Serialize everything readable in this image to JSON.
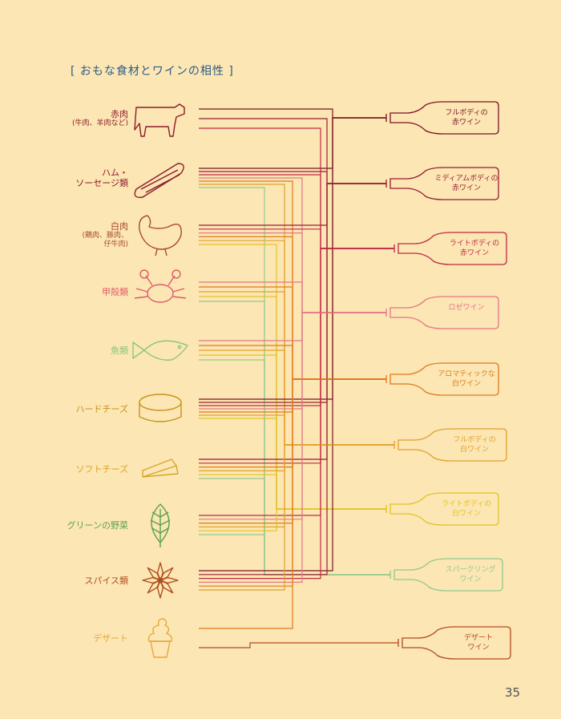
{
  "title": "[ おもな食材とワインの相性 ]",
  "page_number": "35",
  "foods": [
    {
      "name": "赤肉",
      "sub": "(牛肉、羊肉など)",
      "icon": "cow-icon",
      "color": "#8e1a2c"
    },
    {
      "name": "ハム・\nソーセージ類",
      "sub": "",
      "icon": "ham-icon",
      "color": "#8e1a2c"
    },
    {
      "name": "白肉",
      "sub": "(鶏肉、豚肉、\n仔牛肉)",
      "icon": "chicken-icon",
      "color": "#a8492e"
    },
    {
      "name": "甲殻類",
      "sub": "",
      "icon": "crab-icon",
      "color": "#e05a68"
    },
    {
      "name": "魚類",
      "sub": "",
      "icon": "fish-icon",
      "color": "#8cc67d"
    },
    {
      "name": "ハードチーズ",
      "sub": "",
      "icon": "hard-cheese-icon",
      "color": "#c79420"
    },
    {
      "name": "ソフトチーズ",
      "sub": "",
      "icon": "soft-cheese-icon",
      "color": "#d9a42a"
    },
    {
      "name": "グリーンの野菜",
      "sub": "",
      "icon": "leaf-icon",
      "color": "#5aa24a"
    },
    {
      "name": "スパイス類",
      "sub": "",
      "icon": "star-anise-icon",
      "color": "#b0501f"
    },
    {
      "name": "デザート",
      "sub": "",
      "icon": "dessert-icon",
      "color": "#e7a93a"
    }
  ],
  "wines": [
    {
      "name": "フルボディの\n赤ワイン",
      "icon": "bottle-icon",
      "color": "#7a1423"
    },
    {
      "name": "ミディアムボディの\n赤ワイン",
      "icon": "bottle-icon",
      "color": "#9a1d33"
    },
    {
      "name": "ライトボディの\n赤ワイン",
      "icon": "bottle-icon",
      "color": "#c02a45"
    },
    {
      "name": "ロゼワイン",
      "icon": "bottle-icon",
      "color": "#e37787"
    },
    {
      "name": "アロマティックな\n白ワイン",
      "icon": "bottle-icon",
      "color": "#e07a1c"
    },
    {
      "name": "フルボディの\n白ワイン",
      "icon": "bottle-icon",
      "color": "#e2a12c"
    },
    {
      "name": "ライトボディの\n白ワイン",
      "icon": "bottle-icon",
      "color": "#e1c426"
    },
    {
      "name": "スパークリング\nワイン",
      "icon": "bottle-icon",
      "color": "#94c98c"
    },
    {
      "name": "デザート\nワイン",
      "icon": "bottle-icon",
      "color": "#b24a22"
    }
  ],
  "pairings": [
    [
      0,
      1,
      2
    ],
    [
      0,
      1,
      2,
      3,
      4,
      5,
      7
    ],
    [
      1,
      2,
      3,
      4,
      5,
      6
    ],
    [
      3,
      4,
      5,
      6,
      7
    ],
    [
      3,
      4,
      5,
      6,
      7
    ],
    [
      0,
      1,
      2,
      3,
      4,
      5,
      6
    ],
    [
      1,
      2,
      4,
      5,
      6,
      7
    ],
    [
      2,
      3,
      4,
      5,
      6,
      7
    ],
    [
      0,
      1,
      2,
      3,
      4,
      5
    ],
    [
      4,
      8
    ]
  ]
}
